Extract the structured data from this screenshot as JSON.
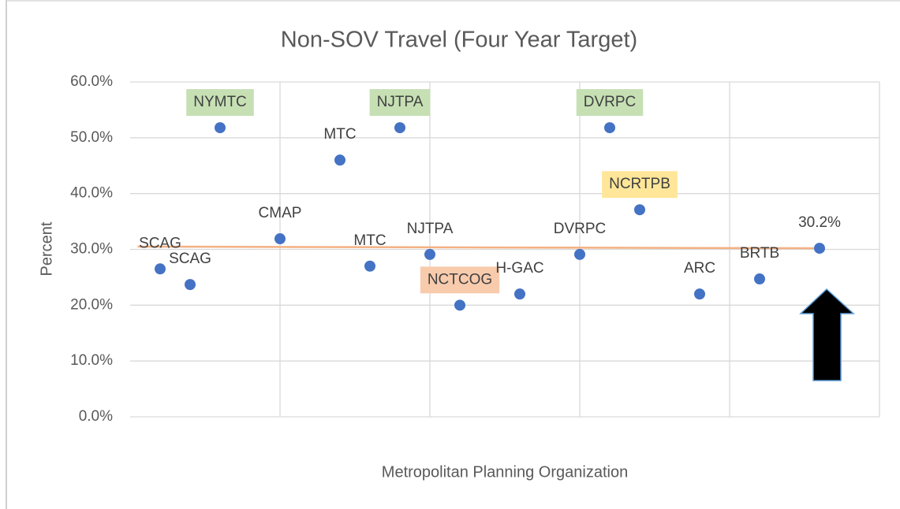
{
  "chart_data": {
    "type": "scatter",
    "title": "Non-SOV Travel (Four Year Target)",
    "x_label": "Metropolitan Planning Organization",
    "y_label": "Percent",
    "x": [
      0.2,
      0.4,
      0.6,
      1.0,
      1.4,
      1.6,
      1.8,
      2.0,
      2.2,
      2.6,
      3.0,
      3.2,
      3.4,
      3.8,
      4.2,
      4.6
    ],
    "values": [
      26.5,
      23.7,
      51.8,
      31.9,
      46.0,
      27.0,
      51.8,
      29.1,
      20.0,
      22.0,
      29.1,
      51.8,
      37.1,
      22.0,
      24.7,
      30.2
    ],
    "point_labels": [
      "SCAG",
      "SCAG",
      "NYMTC",
      "CMAP",
      "MTC",
      "MTC",
      "NJTPA",
      "NJTPA",
      "NCTCOG",
      "H-GAC",
      "DVRPC",
      "DVRPC",
      "NCRTPB",
      "ARC",
      "BRTB",
      "30.2%"
    ],
    "label_highlights": [
      null,
      null,
      "#c6e0b4",
      null,
      null,
      null,
      "#c6e0b4",
      null,
      "#f8cbad",
      null,
      null,
      "#c6e0b4",
      "#ffe699",
      null,
      null,
      null
    ],
    "color": "#4472c4",
    "trendline": {
      "x": [
        0.05,
        4.6
      ],
      "y": [
        30.5,
        30.2
      ],
      "color": "#f4b183"
    },
    "xlim": [
      0,
      5
    ],
    "xticks": [
      1,
      2,
      3,
      4,
      5
    ],
    "ylim": [
      0,
      60
    ],
    "yticks": [
      {
        "value": 0,
        "label": "0.0%"
      },
      {
        "value": 10,
        "label": "10.0%"
      },
      {
        "value": 20,
        "label": "20.0%"
      },
      {
        "value": 30,
        "label": "30.0%"
      },
      {
        "value": 40,
        "label": "40.0%"
      },
      {
        "value": 50,
        "label": "50.0%"
      },
      {
        "value": 60,
        "label": "60.0%"
      }
    ],
    "grid": true
  }
}
